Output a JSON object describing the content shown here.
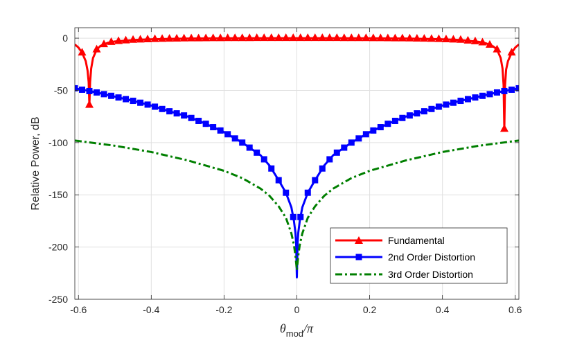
{
  "chart_data": {
    "type": "line",
    "title": "",
    "xlabel_main": "θ",
    "xlabel_sub": "mod",
    "xlabel_tail": "/π",
    "ylabel": "Relative Power, dB",
    "xlim": [
      -0.61,
      0.61
    ],
    "ylim": [
      -250,
      10
    ],
    "xticks": [
      -0.6,
      -0.4,
      -0.2,
      0,
      0.2,
      0.4,
      0.6
    ],
    "xtick_labels": [
      "-0.6",
      "-0.4",
      "-0.2",
      "0",
      "0.2",
      "0.4",
      "0.6"
    ],
    "yticks": [
      0,
      -50,
      -100,
      -150,
      -200,
      -250
    ],
    "ytick_labels": [
      "0",
      "-50",
      "-100",
      "-150",
      "-200",
      "-250"
    ],
    "grid": true,
    "legend_position": "bottom-right",
    "colors": {
      "fundamental": "#ff0000",
      "second": "#0000ff",
      "third": "#007f00",
      "grid": "#e0e0e0",
      "axis": "#262626"
    },
    "series": [
      {
        "name": "Fundamental",
        "marker": "triangle",
        "x": [
          -0.61,
          -0.6,
          -0.59,
          -0.58,
          -0.575,
          -0.572,
          -0.57,
          -0.568,
          -0.565,
          -0.56,
          -0.55,
          -0.54,
          -0.52,
          -0.5,
          -0.45,
          -0.4,
          -0.35,
          -0.3,
          -0.2,
          -0.1,
          0,
          0.1,
          0.2,
          0.3,
          0.35,
          0.4,
          0.45,
          0.5,
          0.52,
          0.54,
          0.55,
          0.56,
          0.565,
          0.568,
          0.57,
          0.572,
          0.575,
          0.58,
          0.59,
          0.6,
          0.61
        ],
        "y": [
          -6,
          -9,
          -14,
          -22,
          -31,
          -42,
          -64,
          -42,
          -29,
          -19,
          -11,
          -7.5,
          -4.5,
          -3.2,
          -1.8,
          -1.1,
          -0.7,
          -0.4,
          -0.15,
          -0.05,
          0,
          -0.05,
          -0.15,
          -0.4,
          -0.7,
          -1.1,
          -1.8,
          -3.5,
          -5,
          -8,
          -11,
          -19,
          -29,
          -45,
          -87,
          -45,
          -30,
          -22,
          -14,
          -9,
          -6
        ]
      },
      {
        "name": "2nd Order Distortion",
        "marker": "square",
        "x": [
          -0.61,
          -0.55,
          -0.5,
          -0.45,
          -0.4,
          -0.35,
          -0.3,
          -0.25,
          -0.2,
          -0.15,
          -0.1,
          -0.075,
          -0.05,
          -0.03,
          -0.015,
          -0.008,
          -0.004,
          -0.002,
          0,
          0.002,
          0.004,
          0.008,
          0.015,
          0.03,
          0.05,
          0.075,
          0.1,
          0.15,
          0.2,
          0.25,
          0.3,
          0.35,
          0.4,
          0.45,
          0.5,
          0.55,
          0.61
        ],
        "y": [
          -48,
          -52,
          -56,
          -60,
          -64.5,
          -70,
          -75,
          -82,
          -90,
          -100,
          -112,
          -122,
          -136,
          -148,
          -162,
          -175,
          -186,
          -196,
          -229,
          -196,
          -186,
          -175,
          -162,
          -148,
          -136,
          -122,
          -112,
          -100,
          -90,
          -82,
          -75,
          -70,
          -64.5,
          -60,
          -56,
          -52,
          -48
        ]
      },
      {
        "name": "3rd Order Distortion",
        "marker": "none",
        "x": [
          -0.61,
          -0.5,
          -0.4,
          -0.3,
          -0.2,
          -0.15,
          -0.1,
          -0.075,
          -0.05,
          -0.03,
          -0.015,
          -0.008,
          -0.004,
          0,
          0.004,
          0.008,
          0.015,
          0.03,
          0.05,
          0.075,
          0.1,
          0.15,
          0.2,
          0.3,
          0.4,
          0.5,
          0.61
        ],
        "y": [
          -98,
          -103,
          -109,
          -117,
          -127,
          -134,
          -144,
          -151,
          -161,
          -172,
          -187,
          -198,
          -208,
          -222,
          -208,
          -198,
          -187,
          -172,
          -161,
          -151,
          -144,
          -134,
          -127,
          -117,
          -109,
          -103,
          -98
        ]
      }
    ],
    "markers": {
      "Fundamental": {
        "x": [
          -0.59,
          -0.57,
          -0.55,
          -0.53,
          -0.51,
          -0.49,
          -0.47,
          -0.45,
          -0.43,
          -0.41,
          -0.39,
          -0.37,
          -0.35,
          -0.33,
          -0.31,
          -0.29,
          -0.27,
          -0.25,
          -0.23,
          -0.21,
          -0.19,
          -0.17,
          -0.15,
          -0.13,
          -0.11,
          -0.09,
          -0.07,
          -0.05,
          -0.03,
          -0.01,
          0.01,
          0.03,
          0.05,
          0.07,
          0.09,
          0.11,
          0.13,
          0.15,
          0.17,
          0.19,
          0.21,
          0.23,
          0.25,
          0.27,
          0.29,
          0.31,
          0.33,
          0.35,
          0.37,
          0.39,
          0.41,
          0.43,
          0.45,
          0.47,
          0.49,
          0.51,
          0.53,
          0.55,
          0.57,
          0.59
        ]
      },
      "2nd Order Distortion": {
        "x": [
          -0.61,
          -0.59,
          -0.57,
          -0.55,
          -0.53,
          -0.51,
          -0.49,
          -0.47,
          -0.45,
          -0.43,
          -0.41,
          -0.39,
          -0.37,
          -0.35,
          -0.33,
          -0.31,
          -0.29,
          -0.27,
          -0.25,
          -0.23,
          -0.21,
          -0.19,
          -0.17,
          -0.15,
          -0.13,
          -0.11,
          -0.09,
          -0.07,
          -0.05,
          -0.03,
          -0.01,
          0.01,
          0.03,
          0.05,
          0.07,
          0.09,
          0.11,
          0.13,
          0.15,
          0.17,
          0.19,
          0.21,
          0.23,
          0.25,
          0.27,
          0.29,
          0.31,
          0.33,
          0.35,
          0.37,
          0.39,
          0.41,
          0.43,
          0.45,
          0.47,
          0.49,
          0.51,
          0.53,
          0.55,
          0.57,
          0.59,
          0.61
        ]
      }
    }
  }
}
